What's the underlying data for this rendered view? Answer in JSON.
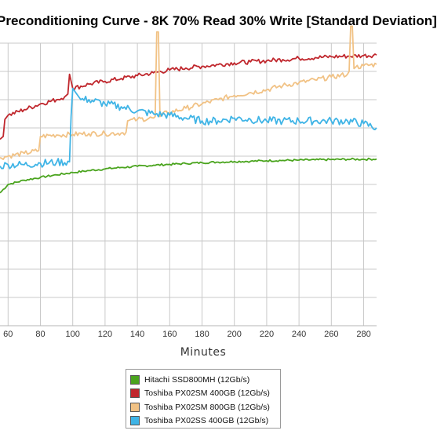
{
  "chart_data": {
    "type": "line",
    "title": "Preconditioning Curve - 8K 70% Read 30% Write [Standard Deviation]",
    "xlabel": "Minutes",
    "ylabel": "",
    "xlim": [
      55,
      288
    ],
    "ylim": [
      0,
      100
    ],
    "x_ticks": [
      60,
      80,
      100,
      120,
      140,
      160,
      180,
      200,
      220,
      240,
      260,
      280
    ],
    "grid": true,
    "legend_position": "bottom",
    "series": [
      {
        "name": "Hitachi SSD800MH (12Gb/s)",
        "color": "#4aa41e",
        "x": [
          55,
          60,
          70,
          80,
          90,
          100,
          110,
          120,
          130,
          140,
          150,
          160,
          170,
          180,
          190,
          200,
          210,
          220,
          230,
          240,
          250,
          260,
          270,
          280,
          288
        ],
        "y": [
          47,
          50,
          51.5,
          52.5,
          53.4,
          54.2,
          54.9,
          55.5,
          56,
          56.4,
          56.8,
          57.1,
          57.4,
          57.7,
          57.9,
          58.1,
          58.2,
          58.4,
          58.5,
          58.6,
          58.7,
          58.8,
          58.9,
          58.9,
          59
        ]
      },
      {
        "name": "Toshiba PX02SM 400GB (12Gb/s)",
        "color": "#c0272d",
        "x": [
          55,
          57,
          58,
          60,
          70,
          80,
          90,
          95,
          97,
          98,
          100,
          110,
          120,
          130,
          140,
          150,
          160,
          170,
          180,
          190,
          200,
          210,
          220,
          230,
          240,
          250,
          260,
          270,
          280,
          288
        ],
        "y": [
          66,
          67,
          73,
          74.5,
          76.5,
          78.5,
          80,
          81,
          82,
          89,
          84,
          85.5,
          86.5,
          87.5,
          88.5,
          89.5,
          90.5,
          91.2,
          91.8,
          92.4,
          93,
          93.4,
          93.8,
          94.2,
          94.6,
          94.9,
          95.2,
          95.4,
          95.6,
          95.8
        ]
      },
      {
        "name": "Toshiba PX02SM 800GB (12Gb/s)",
        "color": "#f1c285",
        "x": [
          55,
          60,
          70,
          79,
          80,
          90,
          100,
          110,
          120,
          130,
          133,
          134,
          140,
          150,
          151,
          152,
          153,
          154,
          155,
          160,
          170,
          180,
          190,
          200,
          210,
          220,
          230,
          240,
          250,
          260,
          270,
          271,
          272,
          273,
          274,
          275,
          280,
          288
        ],
        "y": [
          59.5,
          60,
          61,
          62,
          67,
          67.5,
          67.7,
          68,
          68,
          68.2,
          68.5,
          72.5,
          73,
          73.5,
          74,
          104,
          104,
          74,
          74.8,
          75.5,
          77,
          78.5,
          80,
          81.5,
          82.5,
          83.5,
          85,
          86,
          87,
          88,
          89,
          90,
          106,
          106,
          91,
          91.5,
          92,
          92.5
        ]
      },
      {
        "name": "Toshiba PX02SS 400GB (12Gb/s)",
        "color": "#3fb4e6",
        "x": [
          55,
          60,
          70,
          80,
          90,
          98,
          99,
          100,
          105,
          110,
          120,
          130,
          140,
          150,
          160,
          170,
          180,
          190,
          200,
          210,
          220,
          230,
          240,
          250,
          260,
          270,
          280,
          288
        ],
        "y": [
          56.5,
          57,
          57,
          57.5,
          57.8,
          58,
          74,
          84,
          80,
          80,
          78.5,
          77.5,
          76,
          75,
          74.5,
          73.5,
          72.5,
          72.5,
          73.5,
          73,
          72.5,
          72.5,
          72.5,
          72.5,
          72.5,
          72.5,
          71.5,
          70
        ]
      }
    ]
  }
}
